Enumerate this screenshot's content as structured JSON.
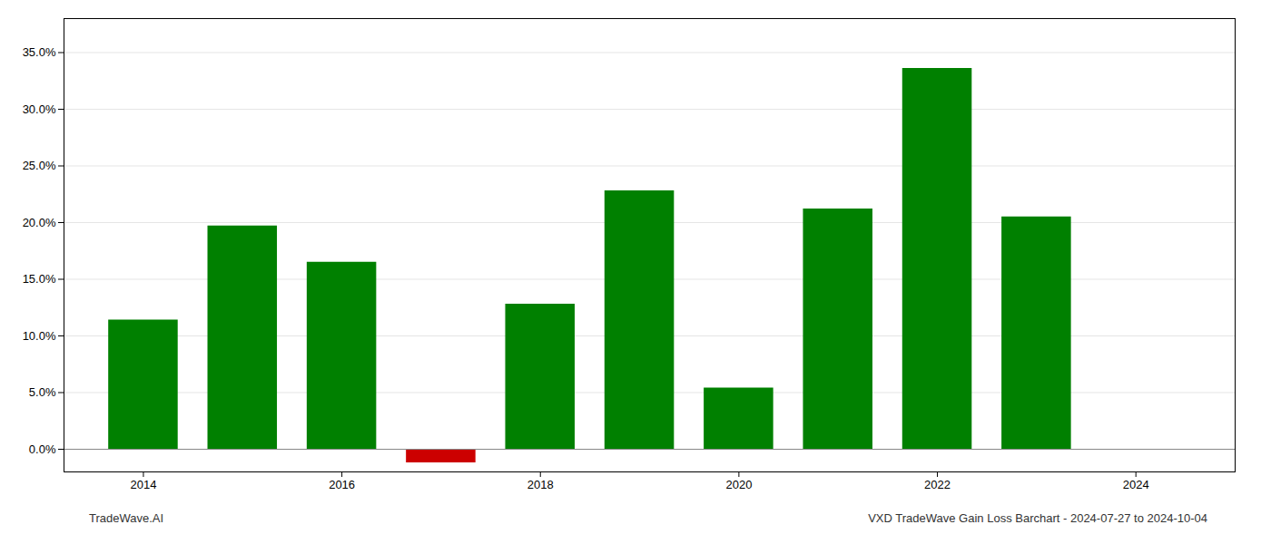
{
  "chart_data": {
    "type": "bar",
    "x": [
      2014,
      2015,
      2016,
      2017,
      2018,
      2019,
      2020,
      2021,
      2022,
      2023
    ],
    "values": [
      0.114,
      0.197,
      0.165,
      -0.012,
      0.128,
      0.228,
      0.054,
      0.212,
      0.336,
      0.205
    ],
    "colors": [
      "#008000",
      "#008000",
      "#008000",
      "#cc0000",
      "#008000",
      "#008000",
      "#008000",
      "#008000",
      "#008000",
      "#008000"
    ],
    "xlim": [
      2013.2,
      2025.0
    ],
    "xticks": [
      2014,
      2016,
      2018,
      2020,
      2022,
      2024
    ],
    "ylim": [
      -0.02,
      0.38
    ],
    "yticks": [
      {
        "value": 0.0,
        "label": "0.0%"
      },
      {
        "value": 0.05,
        "label": "5.0%"
      },
      {
        "value": 0.1,
        "label": "10.0%"
      },
      {
        "value": 0.15,
        "label": "15.0%"
      },
      {
        "value": 0.2,
        "label": "20.0%"
      },
      {
        "value": 0.25,
        "label": "25.0%"
      },
      {
        "value": 0.3,
        "label": "30.0%"
      },
      {
        "value": 0.35,
        "label": "35.0%"
      }
    ],
    "grid": true,
    "annotations": [
      "TradeWave.AI",
      "VXD TradeWave Gain Loss Barchart - 2024-07-27 to 2024-10-04"
    ]
  }
}
